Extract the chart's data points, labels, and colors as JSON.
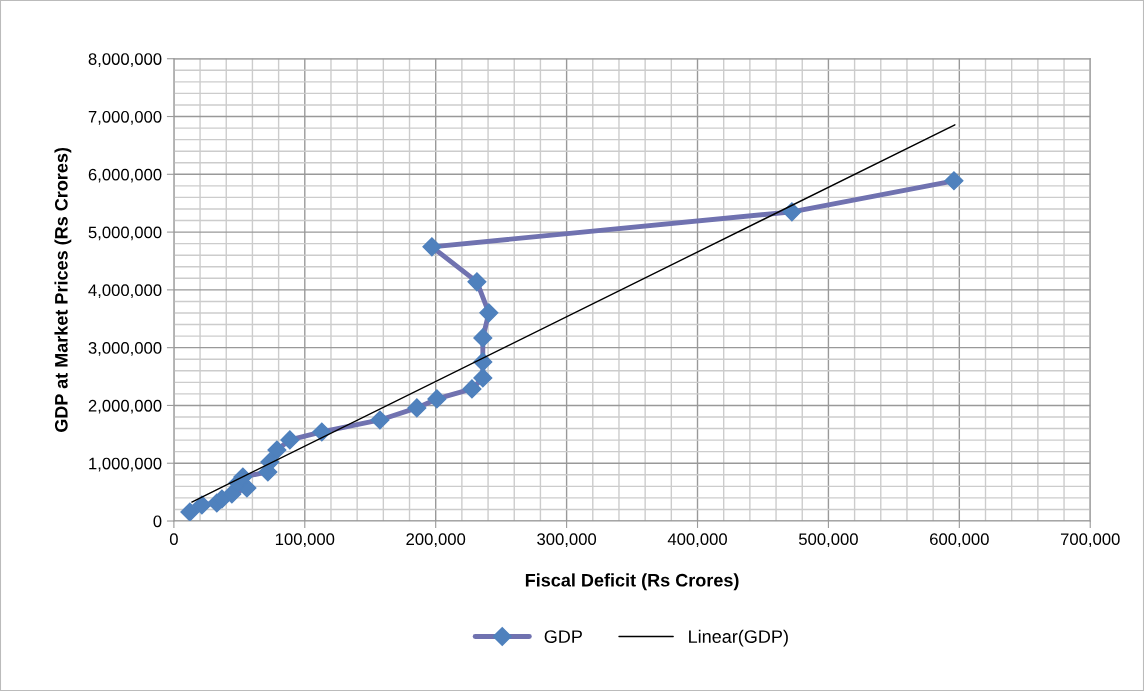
{
  "chart_data": {
    "type": "line",
    "xlabel": "Fiscal Deficit (Rs Crores)",
    "ylabel": "GDP at Market Prices (Rs Crores)",
    "xlim": [
      0,
      700000
    ],
    "ylim": [
      0,
      8000000
    ],
    "xticks": [
      0,
      {
        "value": 100000,
        "label": "100,000"
      },
      {
        "value": 200000,
        "label": "200,000"
      },
      {
        "value": 300000,
        "label": "300,000"
      },
      {
        "value": 400000,
        "label": "400,000"
      },
      {
        "value": 500000,
        "label": "500,000"
      },
      {
        "value": 600000,
        "label": "600,000"
      },
      {
        "value": 700000,
        "label": "700,000"
      }
    ],
    "yticks": [
      0,
      {
        "value": 1000000,
        "label": "1,000,000"
      },
      {
        "value": 2000000,
        "label": "2,000,000"
      },
      {
        "value": 3000000,
        "label": "3,000,000"
      },
      {
        "value": 4000000,
        "label": "4,000,000"
      },
      {
        "value": 5000000,
        "label": "5,000,000"
      },
      {
        "value": 6000000,
        "label": "6,000,000"
      },
      {
        "value": 7000000,
        "label": "7,000,000"
      },
      {
        "value": 8000000,
        "label": "8,000,000"
      }
    ],
    "grid": true,
    "legend": "bottom",
    "series": [
      {
        "name": "GDP",
        "color": "#7072b0",
        "marker": "diamond",
        "x": [
          12200,
          21400,
          32800,
          36700,
          44300,
          55800,
          48900,
          52700,
          71800,
          73300,
          78700,
          88600,
          113000,
          157400,
          185600,
          200900,
          227700,
          236000,
          236000,
          236000,
          240600,
          231500,
          197100,
          472100,
          595900
        ],
        "values": [
          156000,
          277000,
          312000,
          381000,
          468000,
          571000,
          658000,
          762000,
          849000,
          1022000,
          1229000,
          1403000,
          1541000,
          1749000,
          1957000,
          2113000,
          2286000,
          2476000,
          2753000,
          3169000,
          3602000,
          4139000,
          4745000,
          5351000,
          5888000
        ]
      },
      {
        "name": "Linear(GDP)",
        "color": "#000000",
        "marker": "none",
        "x": [
          13700,
          596600
        ],
        "values": [
          329000,
          6857000
        ]
      }
    ]
  }
}
